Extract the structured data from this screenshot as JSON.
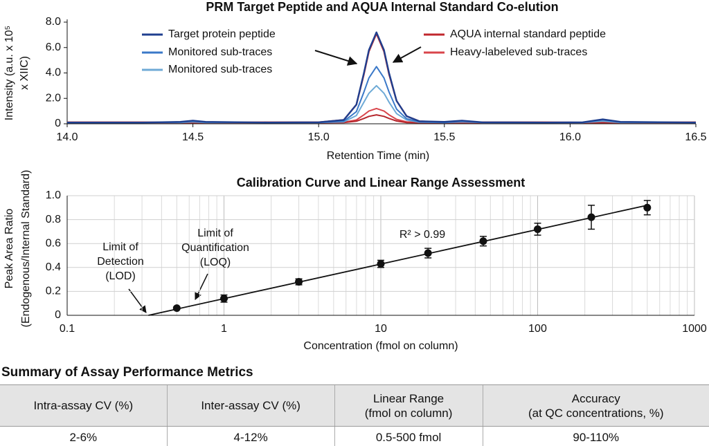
{
  "chart_data": [
    {
      "type": "line",
      "title": "PRM Target Peptide and AQUA Internal Standard Co-elution",
      "xlabel": "Retention Time (min)",
      "ylabel": [
        "Intensity (a.u. x 10⁵",
        "x XIIC)"
      ],
      "x": [
        14.0,
        14.3,
        14.45,
        14.5,
        14.55,
        14.8,
        15.0,
        15.1,
        15.15,
        15.18,
        15.2,
        15.23,
        15.26,
        15.28,
        15.31,
        15.35,
        15.4,
        15.5,
        15.57,
        15.65,
        15.9,
        16.05,
        16.13,
        16.2,
        16.5
      ],
      "series": [
        {
          "name": "Target protein peptide",
          "color": "#1f3f8f",
          "values": [
            0.1,
            0.1,
            0.15,
            0.25,
            0.15,
            0.1,
            0.12,
            0.3,
            1.5,
            4.0,
            5.8,
            7.2,
            5.8,
            4.0,
            1.8,
            0.6,
            0.2,
            0.15,
            0.25,
            0.12,
            0.1,
            0.12,
            0.35,
            0.15,
            0.1
          ]
        },
        {
          "name": "Monitored sub-traces",
          "color": "#3a78c8",
          "values": [
            0.1,
            0.1,
            0.12,
            0.2,
            0.12,
            0.1,
            0.1,
            0.2,
            0.95,
            2.5,
            3.6,
            4.5,
            3.6,
            2.5,
            1.15,
            0.4,
            0.15,
            0.1,
            0.2,
            0.1,
            0.1,
            0.1,
            0.3,
            0.12,
            0.1
          ]
        },
        {
          "name": "Monitored sub-traces",
          "color": "#6eaad6",
          "values": [
            0.1,
            0.1,
            0.1,
            0.15,
            0.1,
            0.1,
            0.1,
            0.15,
            0.65,
            1.7,
            2.4,
            3.0,
            2.4,
            1.7,
            0.8,
            0.3,
            0.12,
            0.1,
            0.15,
            0.1,
            0.1,
            0.1,
            0.2,
            0.1,
            0.1
          ]
        },
        {
          "name": "AQUA internal standard peptide",
          "color": "#c0272d",
          "values": [
            0.12,
            0.12,
            0.1,
            0.1,
            0.1,
            0.12,
            0.12,
            0.3,
            1.5,
            3.9,
            5.7,
            7.1,
            5.7,
            3.9,
            1.8,
            0.6,
            0.2,
            0.12,
            0.12,
            0.12,
            0.12,
            0.1,
            0.1,
            0.1,
            0.12
          ]
        },
        {
          "name": "Heavy-labeleved sub-traces",
          "color": "#d9454b",
          "values": [
            0.1,
            0.1,
            0.1,
            0.1,
            0.1,
            0.1,
            0.1,
            0.12,
            0.3,
            0.7,
            1.0,
            1.2,
            1.0,
            0.7,
            0.35,
            0.15,
            0.1,
            0.1,
            0.1,
            0.1,
            0.1,
            0.1,
            0.1,
            0.1,
            0.1
          ]
        },
        {
          "color": "#b5262c",
          "values": [
            0.08,
            0.08,
            0.08,
            0.08,
            0.08,
            0.08,
            0.08,
            0.1,
            0.2,
            0.42,
            0.58,
            0.7,
            0.58,
            0.42,
            0.22,
            0.1,
            0.08,
            0.08,
            0.08,
            0.08,
            0.08,
            0.08,
            0.08,
            0.08,
            0.08
          ]
        }
      ],
      "xlim": [
        14.0,
        16.5
      ],
      "xticks": [
        {
          "value": 14,
          "label": "14.0"
        },
        14.5,
        {
          "value": 15,
          "label": "15.0"
        },
        15.5,
        {
          "value": 16,
          "label": "16.0"
        },
        16.5
      ],
      "ylim": [
        0,
        8
      ],
      "yticks": [
        0,
        {
          "value": 2,
          "label": "2.0"
        },
        {
          "value": 4,
          "label": "4.0"
        },
        {
          "value": 6,
          "label": "6.0"
        },
        {
          "value": 8,
          "label": "8.0"
        }
      ],
      "grid": false
    },
    {
      "type": "scatter",
      "title": "Calibration Curve and Linear Range Assessment",
      "xlabel": "Concentration (fmol on column)",
      "ylabel": [
        "Peak Area Ratio",
        "(Endogenous/Internal Standard)"
      ],
      "log_x": true,
      "series": [
        {
          "color": "#111111",
          "x": [
            0.5,
            1,
            3,
            10,
            20,
            45,
            100,
            220,
            500
          ],
          "values": [
            0.06,
            0.14,
            0.28,
            0.43,
            0.52,
            0.62,
            0.72,
            0.82,
            0.9
          ],
          "errors": [
            0.01,
            0.03,
            0.025,
            0.03,
            0.04,
            0.04,
            0.05,
            0.1,
            0.06
          ]
        }
      ],
      "fit_line": {
        "x": [
          0.33,
          500
        ],
        "values": [
          0,
          0.92
        ]
      },
      "annotations": [
        {
          "text": [
            "Limit of",
            "Detection",
            "(LOD)"
          ]
        },
        {
          "text": [
            "Limit of",
            "Quantification",
            "(LOQ)"
          ]
        },
        {
          "text": [
            "R² > 0.99"
          ]
        }
      ],
      "xlim": [
        0.1,
        1000
      ],
      "xticks": [
        0.1,
        1,
        10,
        100,
        1000
      ],
      "xminorticks": [
        0.2,
        0.3,
        0.4,
        0.5,
        0.6,
        0.7,
        0.8,
        0.9,
        2,
        3,
        4,
        5,
        6,
        7,
        8,
        9,
        20,
        30,
        40,
        50,
        60,
        70,
        80,
        90,
        200,
        300,
        400,
        500,
        600,
        700,
        800,
        900
      ],
      "ylim": [
        0,
        1
      ],
      "yticks": [
        0,
        0.2,
        0.4,
        0.6,
        0.8,
        {
          "value": 1,
          "label": "1.0"
        }
      ],
      "grid": true
    }
  ],
  "table": {
    "title": "Summary of Assay Performance Metrics",
    "header": [
      "Intra-assay CV (%)",
      "Inter-assay CV (%)",
      "Linear Range\n(fmol on column)",
      "Accuracy\n(at QC concentrations, %)"
    ],
    "rows": [
      [
        "2-6%",
        "4-12%",
        "0.5-500 fmol",
        "90-110%"
      ]
    ]
  }
}
